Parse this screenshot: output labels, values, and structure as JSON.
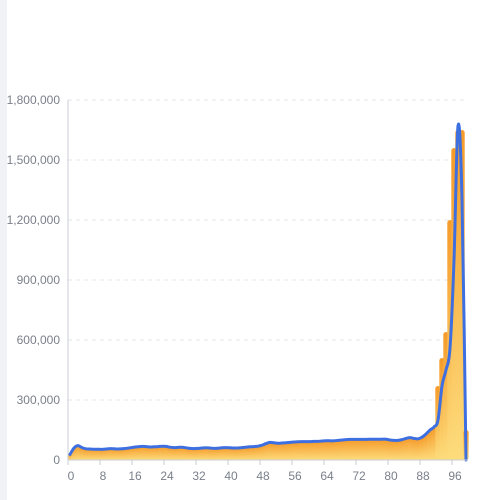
{
  "chart_data": {
    "type": "bar",
    "x": [
      0,
      1,
      2,
      3,
      4,
      5,
      6,
      7,
      8,
      9,
      10,
      11,
      12,
      13,
      14,
      15,
      16,
      17,
      18,
      19,
      20,
      21,
      22,
      23,
      24,
      25,
      26,
      27,
      28,
      29,
      30,
      31,
      32,
      33,
      34,
      35,
      36,
      37,
      38,
      39,
      40,
      41,
      42,
      43,
      44,
      45,
      46,
      47,
      48,
      49,
      50,
      51,
      52,
      53,
      54,
      55,
      56,
      57,
      58,
      59,
      60,
      61,
      62,
      63,
      64,
      65,
      66,
      67,
      68,
      69,
      70,
      71,
      72,
      73,
      74,
      75,
      76,
      77,
      78,
      79,
      80,
      81,
      82,
      83,
      84,
      85,
      86,
      87,
      88,
      89,
      90,
      91,
      92,
      93,
      94,
      95,
      96,
      97,
      98,
      99
    ],
    "series": [
      {
        "type": "bar",
        "values": [
          28000,
          60000,
          72000,
          62000,
          56000,
          55000,
          54000,
          54000,
          53000,
          55000,
          57000,
          56000,
          55000,
          56000,
          58000,
          61000,
          64000,
          66000,
          68000,
          67000,
          65000,
          66000,
          67000,
          69000,
          68000,
          64000,
          62000,
          63000,
          64000,
          61000,
          58000,
          57000,
          58000,
          60000,
          61000,
          60000,
          58000,
          59000,
          61000,
          62000,
          61000,
          60000,
          60000,
          62000,
          64000,
          66000,
          67000,
          69000,
          74000,
          82000,
          88000,
          86000,
          84000,
          85000,
          86000,
          88000,
          90000,
          91000,
          92000,
          92000,
          92000,
          93000,
          93000,
          95000,
          96000,
          96000,
          96000,
          98000,
          100000,
          102000,
          103000,
          103000,
          103000,
          103000,
          103000,
          104000,
          104000,
          104000,
          104000,
          104000,
          100000,
          98000,
          98000,
          102000,
          108000,
          112000,
          108000,
          106000,
          114000,
          130000,
          150000,
          165000,
          370000,
          510000,
          640000,
          1200000,
          1560000,
          1650000,
          1650000,
          150000
        ]
      },
      {
        "type": "line",
        "values": [
          28000,
          60000,
          72000,
          62000,
          56000,
          55000,
          54000,
          54000,
          53000,
          55000,
          57000,
          56000,
          55000,
          56000,
          58000,
          61000,
          64000,
          66000,
          68000,
          67000,
          65000,
          66000,
          67000,
          69000,
          68000,
          64000,
          62000,
          63000,
          64000,
          61000,
          58000,
          57000,
          58000,
          60000,
          61000,
          60000,
          58000,
          59000,
          61000,
          62000,
          61000,
          60000,
          60000,
          62000,
          64000,
          66000,
          67000,
          69000,
          74000,
          82000,
          88000,
          86000,
          84000,
          85000,
          86000,
          88000,
          90000,
          91000,
          92000,
          92000,
          92000,
          93000,
          93000,
          95000,
          96000,
          96000,
          96000,
          98000,
          100000,
          102000,
          103000,
          103000,
          103000,
          103000,
          103000,
          104000,
          104000,
          104000,
          104000,
          104000,
          100000,
          98000,
          98000,
          102000,
          108000,
          112000,
          108000,
          106000,
          114000,
          130000,
          150000,
          165000,
          200000,
          370000,
          450000,
          560000,
          1000000,
          1670000,
          1300000,
          0
        ]
      }
    ],
    "y_ticks": [
      "0",
      "300,000",
      "600,000",
      "900,000",
      "1,200,000",
      "1,500,000",
      "1,800,000"
    ],
    "x_ticks": [
      "0",
      "8",
      "16",
      "24",
      "32",
      "40",
      "48",
      "56",
      "64",
      "72",
      "80",
      "88",
      "96"
    ],
    "ylim": [
      0,
      1800000
    ],
    "xlim": [
      0,
      100
    ],
    "grid": true,
    "colors": {
      "bar_top": "#f59b2a",
      "bar_bottom": "#fddc7c",
      "line": "#3e6fe0",
      "axis": "#c9ccd3",
      "grid": "#e3e5ea",
      "tick_text": "#7a7f8a"
    }
  }
}
